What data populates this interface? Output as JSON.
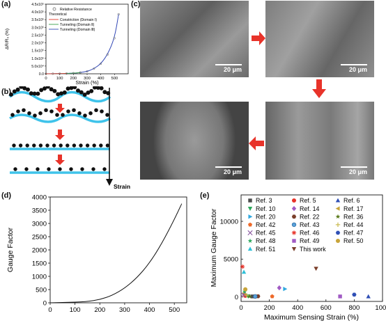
{
  "panel_labels": {
    "a": "(a)",
    "b": "(b)",
    "c": "(c)",
    "d": "(d)",
    "e": "(e)"
  },
  "panel_a": {
    "xlabel": "Strain (%)",
    "ylabel": "ΔR/R₀ (%)",
    "xticks": [
      "0",
      "100",
      "200",
      "300",
      "400",
      "500"
    ],
    "yticks": [
      "0.0",
      "5.0x10⁴",
      "1.0x10⁵",
      "1.5x10⁵",
      "2.0x10⁵",
      "2.5x10⁵",
      "3.0x10⁵",
      "3.5x10⁵",
      "4.0x10⁵",
      "4.5x10⁵"
    ],
    "legend": {
      "marker_label": "Relative Resistance",
      "theoretical": "Theoretical",
      "lines": [
        "Constriction (Domain Ⅰ)",
        "Tunneling (Domain Ⅱ)",
        "Tunneling (Domain Ⅲ)"
      ]
    },
    "colors": {
      "marker": "#5a5a5a",
      "constriction": "#e03a2a",
      "tunneling2": "#3aa14a",
      "tunneling3": "#3046b5"
    }
  },
  "panel_b": {
    "arrow_label": "Strain",
    "colors": {
      "particle": "#111111",
      "substrate": "#3fc3ea",
      "arrow": "#e8332a"
    }
  },
  "panel_c": {
    "scale_label": "20 μm",
    "colors": {
      "arrow": "#e8332a"
    }
  },
  "chart_data": [
    {
      "type": "line",
      "panel": "a",
      "x": [
        0,
        50,
        100,
        150,
        200,
        250,
        300,
        350,
        400,
        450,
        500,
        530
      ],
      "y": [
        0,
        500,
        1000,
        2000,
        4000,
        8000,
        15000,
        33000,
        65000,
        125000,
        230000,
        385000
      ],
      "xlim": [
        0,
        600
      ],
      "ylim": [
        0,
        450000
      ]
    },
    {
      "type": "line",
      "panel": "d",
      "xlabel": "Strain (%)",
      "ylabel": "Gauge Factor",
      "x": [
        0,
        50,
        100,
        150,
        200,
        250,
        300,
        350,
        400,
        450,
        500,
        530
      ],
      "y": [
        0,
        10,
        25,
        50,
        120,
        280,
        550,
        950,
        1500,
        2250,
        3150,
        3750
      ],
      "xlim": [
        0,
        550
      ],
      "ylim": [
        0,
        4000
      ],
      "xticks": [
        0,
        100,
        200,
        300,
        400,
        500
      ],
      "yticks": [
        0,
        500,
        1000,
        1500,
        2000,
        2500,
        3000,
        3500,
        4000
      ]
    },
    {
      "type": "scatter",
      "panel": "e",
      "xlabel": "Maximum Sensing Strain (%)",
      "ylabel": "Maximum Gauge Factor",
      "xlim": [
        0,
        1000
      ],
      "ylim": [
        -600,
        13500
      ],
      "xticks": [
        0,
        200,
        400,
        600,
        800,
        1000
      ],
      "yticks": [
        0,
        5000,
        10000
      ],
      "series": [
        {
          "name": "Ref. 3",
          "marker": "square",
          "color": "#4d4d4d",
          "x": 80,
          "y": 60
        },
        {
          "name": "Ref. 5",
          "marker": "circle",
          "color": "#e8332a",
          "x": 30,
          "y": 150
        },
        {
          "name": "Ref. 6",
          "marker": "triangle",
          "color": "#2f4fb5",
          "x": 900,
          "y": 50
        },
        {
          "name": "Ref. 10",
          "marker": "triangle-down",
          "color": "#2aa85a",
          "x": 50,
          "y": 100
        },
        {
          "name": "Ref. 14",
          "marker": "diamond",
          "color": "#a15bc4",
          "x": 270,
          "y": 1200
        },
        {
          "name": "Ref. 17",
          "marker": "triangle-left",
          "color": "#c8a43a",
          "x": 20,
          "y": 500
        },
        {
          "name": "Ref. 20",
          "marker": "triangle-right",
          "color": "#2fa8e0",
          "x": 310,
          "y": 1050
        },
        {
          "name": "Ref. 22",
          "marker": "hexagon",
          "color": "#7a3e2a",
          "x": 120,
          "y": 80
        },
        {
          "name": "Ref. 36",
          "marker": "star",
          "color": "#5a7a1a",
          "x": 60,
          "y": 60
        },
        {
          "name": "Ref. 42",
          "marker": "pentagon",
          "color": "#ee6a2a",
          "x": 220,
          "y": 60
        },
        {
          "name": "Ref. 43",
          "marker": "circle-half",
          "color": "#5aa0d8",
          "x": 100,
          "y": 60
        },
        {
          "name": "Ref. 44",
          "marker": "plus",
          "color": "#c9b84a",
          "x": 40,
          "y": 200
        },
        {
          "name": "Ref. 45",
          "marker": "x",
          "color": "#8a5aa0",
          "x": 15,
          "y": 300
        },
        {
          "name": "Ref. 46",
          "marker": "asterisk",
          "color": "#e8332a",
          "x": 10,
          "y": 4000
        },
        {
          "name": "Ref. 47",
          "marker": "hexagon",
          "color": "#2f4fb5",
          "x": 800,
          "y": 300
        },
        {
          "name": "Ref. 48",
          "marker": "star",
          "color": "#2aa85a",
          "x": 25,
          "y": 700
        },
        {
          "name": "Ref. 49",
          "marker": "square",
          "color": "#a15bc4",
          "x": 700,
          "y": 60
        },
        {
          "name": "Ref. 50",
          "marker": "circle",
          "color": "#c8a43a",
          "x": 30,
          "y": 1000
        },
        {
          "name": "Ref. 51",
          "marker": "triangle",
          "color": "#2fc0d8",
          "x": 20,
          "y": 3300
        },
        {
          "name": "This work",
          "marker": "triangle-down",
          "color": "#7a3e2a",
          "x": 530,
          "y": 3750
        }
      ]
    }
  ]
}
